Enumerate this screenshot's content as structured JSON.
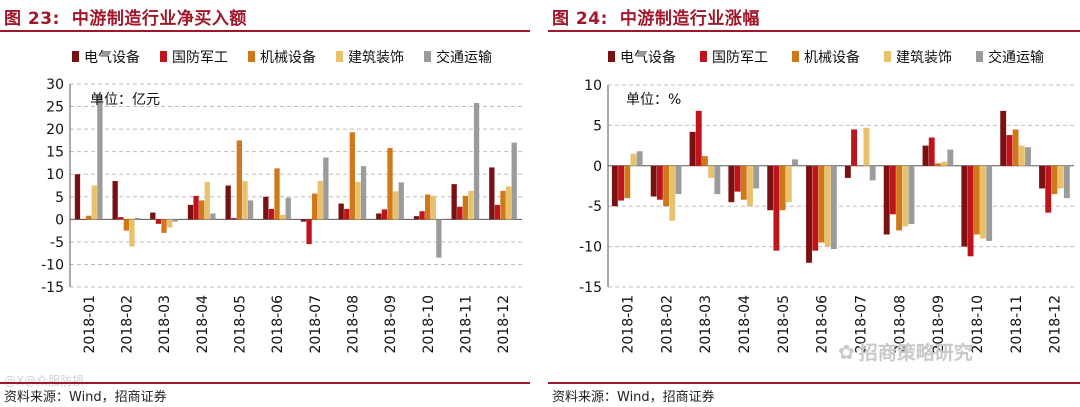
{
  "left": {
    "fig_num": "图 23:",
    "title": "中游制造行业净买入额",
    "source": "资料来源：Wind，招商证券",
    "watermark": "@X@众服防损"
  },
  "right": {
    "fig_num": "图 24:",
    "title": "中游制造行业涨幅",
    "source": "资料来源：Wind，招商证券",
    "watermark": "招商策略研究",
    "watermark_icon": "wechat-icon"
  },
  "colors": {
    "title": "#a0172a",
    "series": [
      "#7b1010",
      "#c0141c",
      "#d07818",
      "#e9c16a",
      "#9b9b9b"
    ],
    "grid": "#bdbdbd"
  },
  "chart_data": [
    {
      "type": "bar",
      "title": "中游制造行业净买入额",
      "unit_label": "单位：亿元",
      "categories": [
        "2018-01",
        "2018-02",
        "2018-03",
        "2018-04",
        "2018-05",
        "2018-06",
        "2018-07",
        "2018-08",
        "2018-09",
        "2018-10",
        "2018-11",
        "2018-12"
      ],
      "series": [
        {
          "name": "电气设备",
          "values": [
            10,
            8.5,
            1.5,
            3.2,
            7.5,
            5,
            -0.5,
            3.5,
            1.3,
            0.7,
            7.8,
            11.5
          ]
        },
        {
          "name": "国防军工",
          "values": [
            0,
            0.5,
            -1,
            5.2,
            0.3,
            2.3,
            -5.5,
            2.3,
            2.2,
            1.8,
            2.8,
            3.2
          ]
        },
        {
          "name": "机械设备",
          "values": [
            0.8,
            -2.5,
            -3,
            4.2,
            17.5,
            11.3,
            5.7,
            19.3,
            15.8,
            5.5,
            5.2,
            6.3
          ]
        },
        {
          "name": "建筑装饰",
          "values": [
            7.5,
            -6,
            -1.8,
            8.3,
            8.5,
            1,
            8.5,
            8.3,
            6.2,
            5.2,
            6.3,
            7.3
          ]
        },
        {
          "name": "交通运输",
          "values": [
            27.5,
            0.3,
            -0.5,
            1.3,
            4.2,
            4.8,
            13.7,
            11.8,
            8.2,
            -8.5,
            25.8,
            17
          ]
        }
      ],
      "ylim": [
        -15,
        30
      ],
      "yticks": [
        "30",
        "25",
        "20",
        "15",
        "10",
        "5",
        "0",
        "-5",
        "-10",
        "-15"
      ],
      "tick_values": [
        30,
        25,
        20,
        15,
        10,
        5,
        0,
        -5,
        -10,
        -15
      ],
      "xlabel": "",
      "ylabel": "",
      "grid": "horizontal dashed",
      "legend": "top"
    },
    {
      "type": "bar",
      "title": "中游制造行业涨幅",
      "unit_label": "单位：%",
      "categories": [
        "2018-01",
        "2018-02",
        "2018-03",
        "2018-04",
        "2018-05",
        "2018-06",
        "2018-07",
        "2018-08",
        "2018-09",
        "2018-10",
        "2018-11",
        "2018-12"
      ],
      "series": [
        {
          "name": "电气设备",
          "values": [
            -5,
            -3.8,
            4.2,
            -4.5,
            -5.5,
            -12,
            -1.5,
            -8.5,
            2.5,
            -10,
            6.8,
            -2.8
          ]
        },
        {
          "name": "国防军工",
          "values": [
            -4.3,
            -4.2,
            6.8,
            -3.2,
            -10.5,
            -10.5,
            4.5,
            -6,
            3.5,
            -11.2,
            3.8,
            -5.8
          ]
        },
        {
          "name": "机械设备",
          "values": [
            -4,
            -5,
            1.2,
            -4.2,
            -5.5,
            -9.5,
            0,
            -8,
            0.3,
            -8.5,
            4.5,
            -3.5
          ]
        },
        {
          "name": "建筑装饰",
          "values": [
            1.5,
            -6.8,
            -1.5,
            -5,
            -4.5,
            -10,
            4.7,
            -7.5,
            0.5,
            -9,
            2.5,
            -2.8
          ]
        },
        {
          "name": "交通运输",
          "values": [
            1.8,
            -3.5,
            -3.5,
            -2.8,
            0.8,
            -10.3,
            -1.8,
            -7.2,
            2,
            -9.3,
            2.3,
            -4
          ]
        }
      ],
      "ylim": [
        -15,
        10
      ],
      "yticks": [
        "10",
        "5",
        "0",
        "-5",
        "-10",
        "-15"
      ],
      "tick_values": [
        10,
        5,
        0,
        -5,
        -10,
        -15
      ],
      "xlabel": "",
      "ylabel": "",
      "grid": "horizontal dashed",
      "legend": "top"
    }
  ]
}
